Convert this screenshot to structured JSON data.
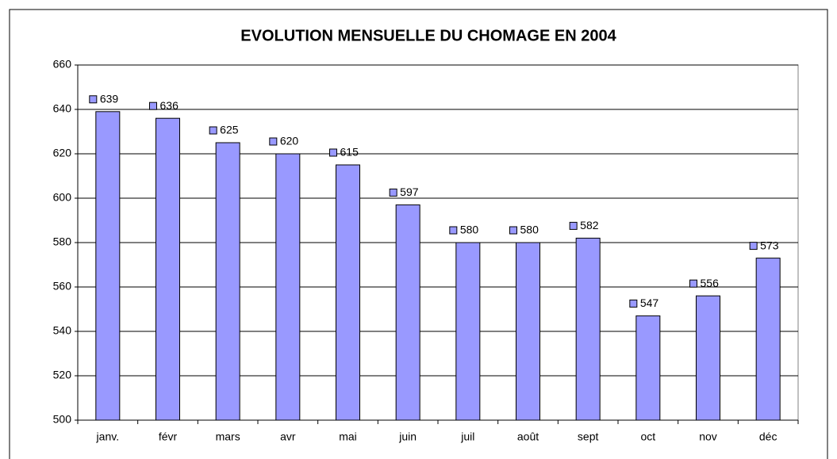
{
  "chart_data": {
    "type": "bar",
    "title": "EVOLUTION MENSUELLE DU CHOMAGE EN 2004",
    "categories": [
      "janv.",
      "févr",
      "mars",
      "avr",
      "mai",
      "juin",
      "juil",
      "août",
      "sept",
      "oct",
      "nov",
      "déc"
    ],
    "values": [
      639,
      636,
      625,
      620,
      615,
      597,
      580,
      580,
      582,
      547,
      556,
      573
    ],
    "color": "#9999ff",
    "ylim": [
      500,
      660
    ],
    "yticks": [
      500,
      520,
      540,
      560,
      580,
      600,
      620,
      640,
      660
    ],
    "grid": true
  }
}
